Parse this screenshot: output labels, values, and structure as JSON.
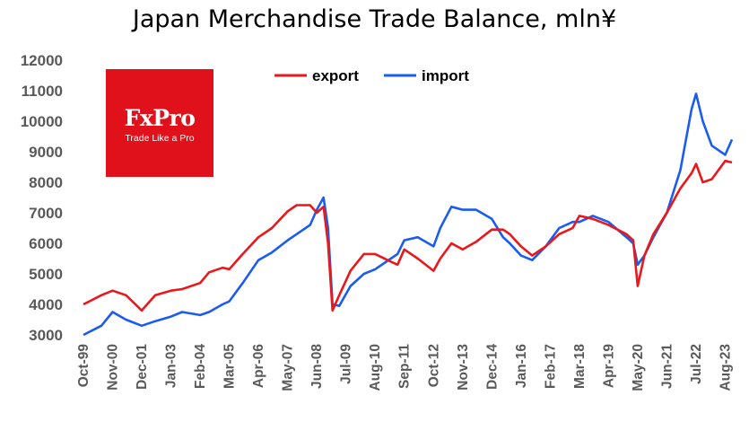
{
  "chart_data": {
    "type": "line",
    "title": "Japan Merchandise Trade Balance, mln¥",
    "xlabel": "",
    "ylabel": "",
    "ylim": [
      3000,
      12000
    ],
    "yticks": [
      3000,
      4000,
      5000,
      6000,
      7000,
      8000,
      9000,
      10000,
      11000,
      12000
    ],
    "xticks": [
      "Oct-99",
      "Nov-00",
      "Dec-01",
      "Jan-03",
      "Feb-04",
      "Mar-05",
      "Apr-06",
      "May-07",
      "Jun-08",
      "Jul-09",
      "Aug-10",
      "Sep-11",
      "Oct-12",
      "Nov-13",
      "Dec-14",
      "Jan-16",
      "Feb-17",
      "Mar-18",
      "Apr-19",
      "May-20",
      "Jun-21",
      "Jul-22",
      "Aug-23"
    ],
    "legend": "top-center",
    "grid": false,
    "series": [
      {
        "name": "export",
        "color": "#e8181d",
        "points": [
          [
            "1999-10",
            4000
          ],
          [
            "2000-06",
            4300
          ],
          [
            "2000-11",
            4450
          ],
          [
            "2001-05",
            4300
          ],
          [
            "2001-12",
            3800
          ],
          [
            "2002-06",
            4300
          ],
          [
            "2003-01",
            4450
          ],
          [
            "2003-06",
            4500
          ],
          [
            "2004-02",
            4700
          ],
          [
            "2004-06",
            5050
          ],
          [
            "2004-12",
            5200
          ],
          [
            "2005-03",
            5150
          ],
          [
            "2005-09",
            5650
          ],
          [
            "2006-04",
            6200
          ],
          [
            "2006-10",
            6500
          ],
          [
            "2007-05",
            7050
          ],
          [
            "2007-09",
            7250
          ],
          [
            "2008-03",
            7250
          ],
          [
            "2008-06",
            7000
          ],
          [
            "2008-09",
            7200
          ],
          [
            "2008-11",
            6000
          ],
          [
            "2009-01",
            3800
          ],
          [
            "2009-04",
            4300
          ],
          [
            "2009-09",
            5100
          ],
          [
            "2010-03",
            5650
          ],
          [
            "2010-08",
            5650
          ],
          [
            "2011-03",
            5400
          ],
          [
            "2011-06",
            5300
          ],
          [
            "2011-09",
            5800
          ],
          [
            "2012-03",
            5500
          ],
          [
            "2012-10",
            5100
          ],
          [
            "2013-01",
            5500
          ],
          [
            "2013-06",
            6000
          ],
          [
            "2013-11",
            5800
          ],
          [
            "2014-05",
            6050
          ],
          [
            "2014-12",
            6450
          ],
          [
            "2015-05",
            6450
          ],
          [
            "2015-08",
            6300
          ],
          [
            "2016-01",
            5900
          ],
          [
            "2016-06",
            5600
          ],
          [
            "2016-12",
            5900
          ],
          [
            "2017-06",
            6300
          ],
          [
            "2017-12",
            6500
          ],
          [
            "2018-03",
            6900
          ],
          [
            "2018-09",
            6800
          ],
          [
            "2019-04",
            6600
          ],
          [
            "2019-12",
            6300
          ],
          [
            "2020-03",
            6100
          ],
          [
            "2020-05",
            4600
          ],
          [
            "2020-08",
            5600
          ],
          [
            "2020-12",
            6300
          ],
          [
            "2021-06",
            7000
          ],
          [
            "2021-12",
            7800
          ],
          [
            "2022-05",
            8300
          ],
          [
            "2022-07",
            8600
          ],
          [
            "2022-10",
            8000
          ],
          [
            "2023-02",
            8100
          ],
          [
            "2023-08",
            8700
          ],
          [
            "2023-11",
            8650
          ]
        ]
      },
      {
        "name": "import",
        "color": "#1a5cf0",
        "points": [
          [
            "1999-10",
            3000
          ],
          [
            "2000-06",
            3300
          ],
          [
            "2000-11",
            3750
          ],
          [
            "2001-05",
            3500
          ],
          [
            "2001-12",
            3300
          ],
          [
            "2002-06",
            3450
          ],
          [
            "2003-01",
            3600
          ],
          [
            "2003-06",
            3750
          ],
          [
            "2004-02",
            3650
          ],
          [
            "2004-06",
            3750
          ],
          [
            "2004-12",
            4000
          ],
          [
            "2005-03",
            4100
          ],
          [
            "2005-09",
            4700
          ],
          [
            "2006-04",
            5450
          ],
          [
            "2006-10",
            5700
          ],
          [
            "2007-05",
            6100
          ],
          [
            "2007-09",
            6300
          ],
          [
            "2008-03",
            6600
          ],
          [
            "2008-06",
            7100
          ],
          [
            "2008-09",
            7500
          ],
          [
            "2008-11",
            6500
          ],
          [
            "2009-01",
            4000
          ],
          [
            "2009-04",
            3950
          ],
          [
            "2009-09",
            4600
          ],
          [
            "2010-03",
            5000
          ],
          [
            "2010-08",
            5150
          ],
          [
            "2011-03",
            5500
          ],
          [
            "2011-06",
            5650
          ],
          [
            "2011-09",
            6100
          ],
          [
            "2012-03",
            6200
          ],
          [
            "2012-10",
            5900
          ],
          [
            "2013-01",
            6500
          ],
          [
            "2013-06",
            7200
          ],
          [
            "2013-11",
            7100
          ],
          [
            "2014-05",
            7100
          ],
          [
            "2014-12",
            6800
          ],
          [
            "2015-05",
            6200
          ],
          [
            "2015-08",
            6000
          ],
          [
            "2016-01",
            5600
          ],
          [
            "2016-06",
            5450
          ],
          [
            "2016-12",
            5900
          ],
          [
            "2017-06",
            6500
          ],
          [
            "2017-12",
            6700
          ],
          [
            "2018-03",
            6700
          ],
          [
            "2018-09",
            6900
          ],
          [
            "2019-04",
            6700
          ],
          [
            "2019-12",
            6200
          ],
          [
            "2020-03",
            6000
          ],
          [
            "2020-05",
            5300
          ],
          [
            "2020-08",
            5600
          ],
          [
            "2020-12",
            6200
          ],
          [
            "2021-06",
            7000
          ],
          [
            "2021-12",
            8400
          ],
          [
            "2022-05",
            10400
          ],
          [
            "2022-07",
            10900
          ],
          [
            "2022-10",
            10000
          ],
          [
            "2023-02",
            9200
          ],
          [
            "2023-08",
            8900
          ],
          [
            "2023-11",
            9400
          ]
        ]
      }
    ]
  },
  "logo": {
    "brand": "FxPro",
    "tagline": "Trade Like a Pro"
  }
}
